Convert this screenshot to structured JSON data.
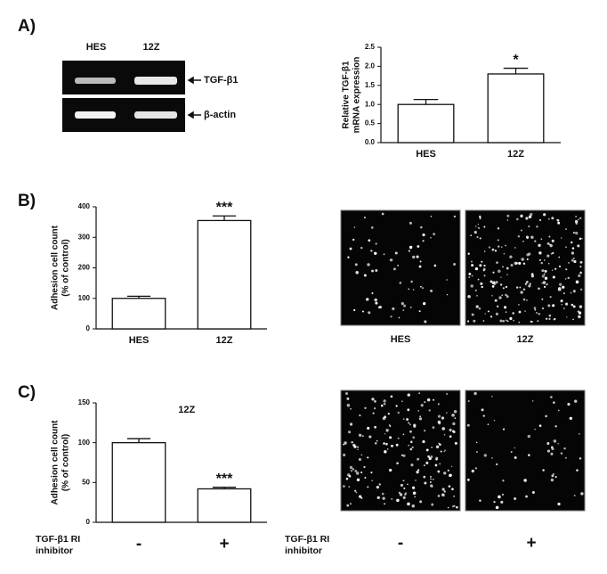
{
  "panels": [
    "A)",
    "B)",
    "C)"
  ],
  "gel": {
    "lanes": [
      "HES",
      "12Z"
    ],
    "bands": [
      "TGF-β1",
      "β-actin"
    ]
  },
  "chart_data": [
    {
      "type": "bar",
      "ylabel": [
        "Relative TGF-β1",
        "mRNA expression"
      ],
      "categories": [
        "HES",
        "12Z"
      ],
      "values": [
        1.0,
        1.8
      ],
      "errors": [
        0.13,
        0.15
      ],
      "value_annotations": [
        null,
        "*"
      ],
      "color": "#ffffff",
      "ylim": [
        0,
        2.5
      ],
      "yticks": [
        {
          "value": 0,
          "label": "0.0"
        },
        0.5,
        {
          "value": 1,
          "label": "1.0"
        },
        1.5,
        {
          "value": 2,
          "label": "2.0"
        },
        2.5
      ]
    },
    {
      "type": "bar",
      "ylabel": [
        "Adhesion cell count",
        "(% of control)"
      ],
      "categories": [
        "HES",
        "12Z"
      ],
      "values": [
        100,
        355
      ],
      "errors": [
        7,
        15
      ],
      "value_annotations": [
        null,
        "***"
      ],
      "color": "#ffffff",
      "ylim": [
        0,
        400
      ],
      "yticks": [
        0,
        100,
        200,
        300,
        400
      ]
    },
    {
      "type": "bar",
      "ylabel": [
        "Adhesion cell count",
        "(% of control)"
      ],
      "annotation": "12Z",
      "x_row_label": "TGF-β1 RI inhibitor",
      "categories": [
        "-",
        "+"
      ],
      "values": [
        100,
        42
      ],
      "errors": [
        5,
        2
      ],
      "value_annotations": [
        null,
        "***"
      ],
      "color": "#ffffff",
      "ylim": [
        0,
        150
      ],
      "yticks": [
        0,
        50,
        100,
        150
      ]
    }
  ],
  "images_b": {
    "labels": [
      "HES",
      "12Z"
    ]
  },
  "images_c": {
    "row_label": "TGF-β1 RI inhibitor",
    "labels": [
      "-",
      "+"
    ]
  }
}
